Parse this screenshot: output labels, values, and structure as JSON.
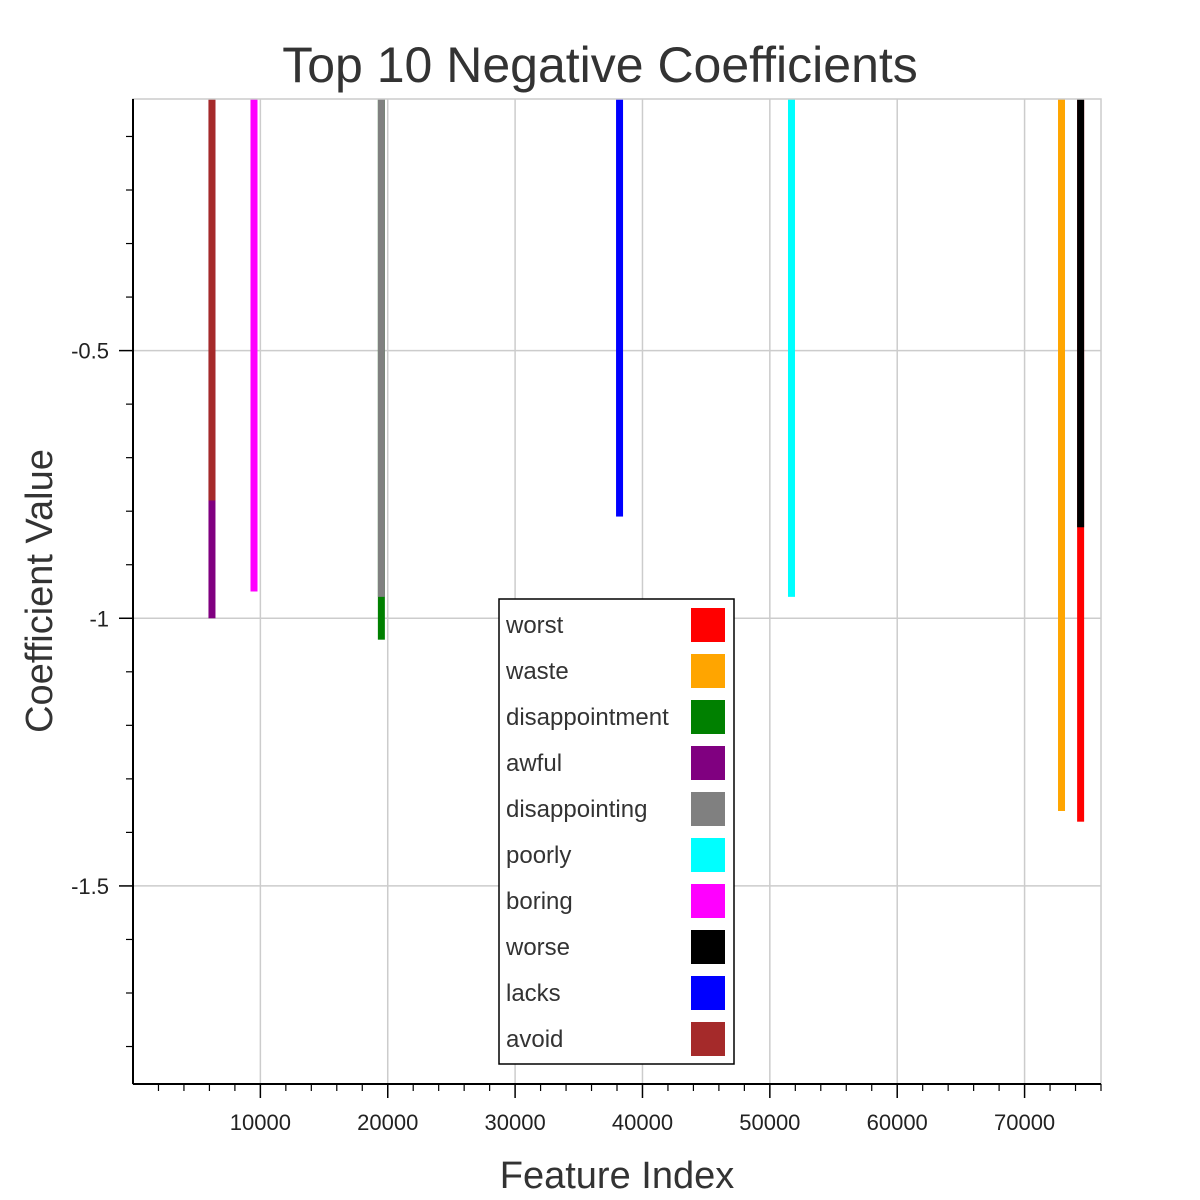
{
  "chart_data": {
    "type": "bar",
    "title": "Top 10 Negative Coefficients",
    "xlabel": "Feature Index",
    "ylabel": "Coefficient Value",
    "xlim": [
      0,
      76000
    ],
    "ylim": [
      -1.87,
      -0.03
    ],
    "x_ticks": [
      10000,
      20000,
      30000,
      40000,
      50000,
      60000,
      70000
    ],
    "y_ticks": [
      -0.5,
      -1,
      -1.5
    ],
    "y_tick_labels": [
      "-0.5",
      "-1",
      "-1.5"
    ],
    "grid": true,
    "legend_position": "bottom-center",
    "series": [
      {
        "name": "worst",
        "x": 74400,
        "value": -1.38,
        "color": "#ff0000"
      },
      {
        "name": "waste",
        "x": 72900,
        "value": -1.36,
        "color": "#ffa500"
      },
      {
        "name": "disappointment",
        "x": 19500,
        "value": -1.04,
        "color": "#008000"
      },
      {
        "name": "awful",
        "x": 6200,
        "value": -1.0,
        "color": "#800080"
      },
      {
        "name": "disappointing",
        "x": 19500,
        "value": -0.96,
        "color": "#808080"
      },
      {
        "name": "poorly",
        "x": 51700,
        "value": -0.96,
        "color": "#00ffff"
      },
      {
        "name": "boring",
        "x": 9500,
        "value": -0.95,
        "color": "#ff00ff"
      },
      {
        "name": "worse",
        "x": 74400,
        "value": -0.83,
        "color": "#000000"
      },
      {
        "name": "lacks",
        "x": 38200,
        "value": -0.81,
        "color": "#0000ff"
      },
      {
        "name": "avoid",
        "x": 6200,
        "value": -0.78,
        "color": "#a52a2a"
      }
    ]
  }
}
